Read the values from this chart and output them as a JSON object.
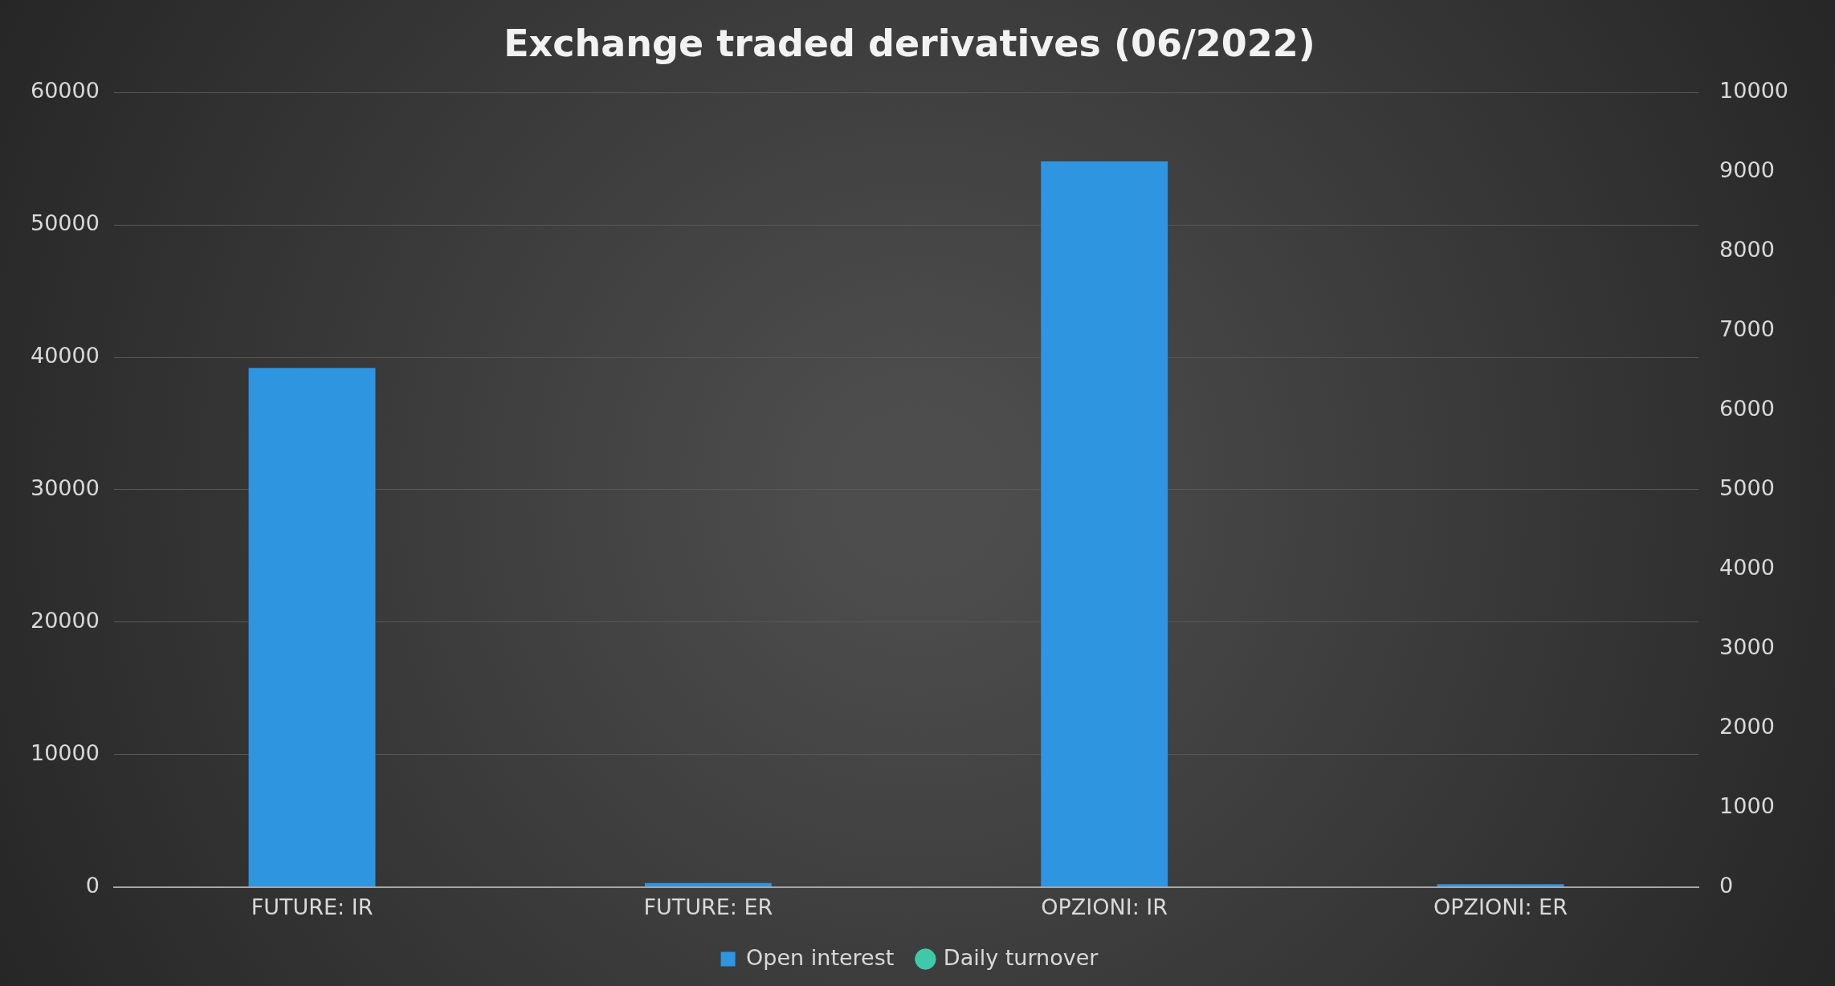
{
  "chart_data": {
    "type": "bar",
    "title": "Exchange traded derivatives (06/2022)",
    "categories": [
      "FUTURE: IR",
      "FUTURE: ER",
      "OPZIONI: IR",
      "OPZIONI: ER"
    ],
    "series": [
      {
        "name": "Open interest",
        "color": "#2e95e0",
        "values": [
          39200,
          300,
          54800,
          200
        ]
      },
      {
        "name": "Daily turnover",
        "type": "scatter",
        "axis": "y2",
        "color": "#3fc9a8",
        "values": [
          null,
          null,
          null,
          null
        ]
      }
    ],
    "ylim": [
      0,
      60000
    ],
    "yticks": [
      0,
      10000,
      20000,
      30000,
      40000,
      50000,
      60000
    ],
    "y2lim": [
      0,
      10000
    ],
    "y2ticks": [
      0,
      1000,
      2000,
      3000,
      4000,
      5000,
      6000,
      7000,
      8000,
      9000,
      10000
    ],
    "grid": "y",
    "legend": "bottom",
    "marker": "circle"
  }
}
